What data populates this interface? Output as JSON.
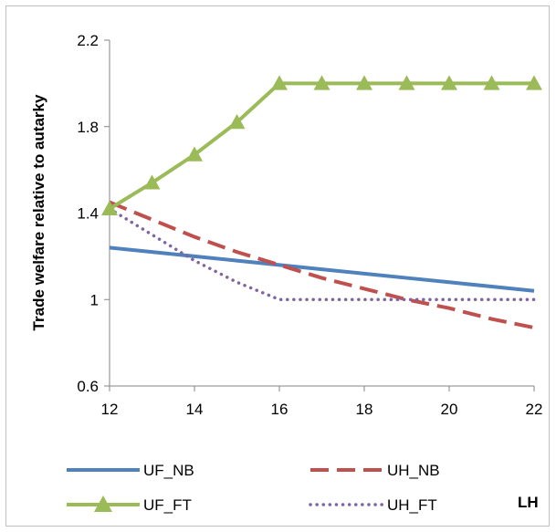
{
  "chart_data": {
    "type": "line",
    "title": "",
    "xlabel": "LH",
    "ylabel": "Trade welfare relative to autarky",
    "x": [
      12,
      13,
      14,
      15,
      16,
      17,
      18,
      19,
      20,
      21,
      22
    ],
    "xlim": [
      12,
      22
    ],
    "ylim": [
      0.6,
      2.2
    ],
    "xticks": [
      "12",
      "14",
      "16",
      "18",
      "20",
      "22"
    ],
    "yticks": [
      "0.6",
      "1",
      "1.4",
      "1.8",
      "2.2"
    ],
    "grid": false,
    "legend_position": "bottom",
    "series": [
      {
        "name": "UF_NB",
        "color": "#4f81bd",
        "style": "solid",
        "values": [
          1.24,
          1.22,
          1.2,
          1.18,
          1.16,
          1.14,
          1.12,
          1.1,
          1.08,
          1.06,
          1.04
        ]
      },
      {
        "name": "UH_NB",
        "color": "#c0504d",
        "style": "dashed",
        "values": [
          1.45,
          1.37,
          1.29,
          1.22,
          1.16,
          1.1,
          1.05,
          1.0,
          0.96,
          0.91,
          0.87
        ]
      },
      {
        "name": "UF_FT",
        "color": "#9bbb59",
        "style": "solid-triangle",
        "values": [
          1.42,
          1.54,
          1.67,
          1.82,
          2.0,
          2.0,
          2.0,
          2.0,
          2.0,
          2.0,
          2.0
        ]
      },
      {
        "name": "UH_FT",
        "color": "#8064a2",
        "style": "dotted",
        "values": [
          1.42,
          1.3,
          1.18,
          1.08,
          1.0,
          1.0,
          1.0,
          1.0,
          1.0,
          1.0,
          1.0
        ]
      }
    ]
  }
}
